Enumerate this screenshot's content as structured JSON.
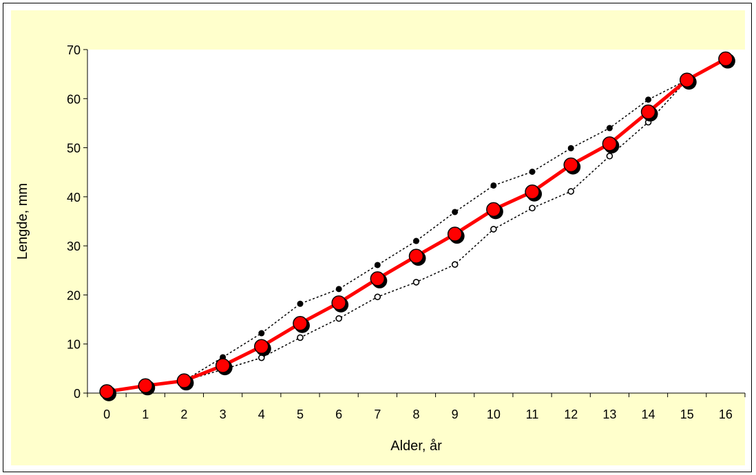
{
  "chart_data": {
    "type": "line",
    "xlabel": "Alder, år",
    "ylabel": "Lengde, mm",
    "ylim": [
      0,
      70
    ],
    "yticks": [
      0,
      10,
      20,
      30,
      40,
      50,
      60,
      70
    ],
    "categories": [
      "0",
      "1",
      "2",
      "3",
      "4",
      "5",
      "6",
      "7",
      "8",
      "9",
      "10",
      "11",
      "12",
      "13",
      "14",
      "15",
      "16"
    ],
    "x": [
      0,
      1,
      2,
      3,
      4,
      5,
      6,
      7,
      8,
      9,
      10,
      11,
      12,
      13,
      14,
      15,
      16
    ],
    "series": [
      {
        "style": "max",
        "values": [
          null,
          null,
          null,
          7.3,
          12.2,
          18.2,
          21.2,
          26.1,
          31.0,
          36.9,
          42.3,
          45.1,
          49.9,
          54.0,
          59.8,
          null,
          null
        ]
      },
      {
        "style": "mean",
        "values": [
          0.3,
          1.5,
          2.5,
          5.6,
          9.5,
          14.2,
          18.4,
          23.3,
          27.9,
          32.4,
          37.4,
          41.0,
          46.5,
          50.8,
          57.3,
          63.8,
          68.1
        ]
      },
      {
        "style": "min",
        "values": [
          null,
          null,
          null,
          4.8,
          7.2,
          11.3,
          15.2,
          19.6,
          22.6,
          26.2,
          33.4,
          37.7,
          41.1,
          48.3,
          55.2,
          null,
          null
        ]
      }
    ],
    "grid": false,
    "legend": "none",
    "colors": {
      "plot_area": "#ffffff",
      "chart_area": "#ffffcc",
      "mean_line": "#ff0000",
      "mean_marker_fill": "#ff0000",
      "marker_shadow": "#000000",
      "range_line": "#000000"
    }
  }
}
